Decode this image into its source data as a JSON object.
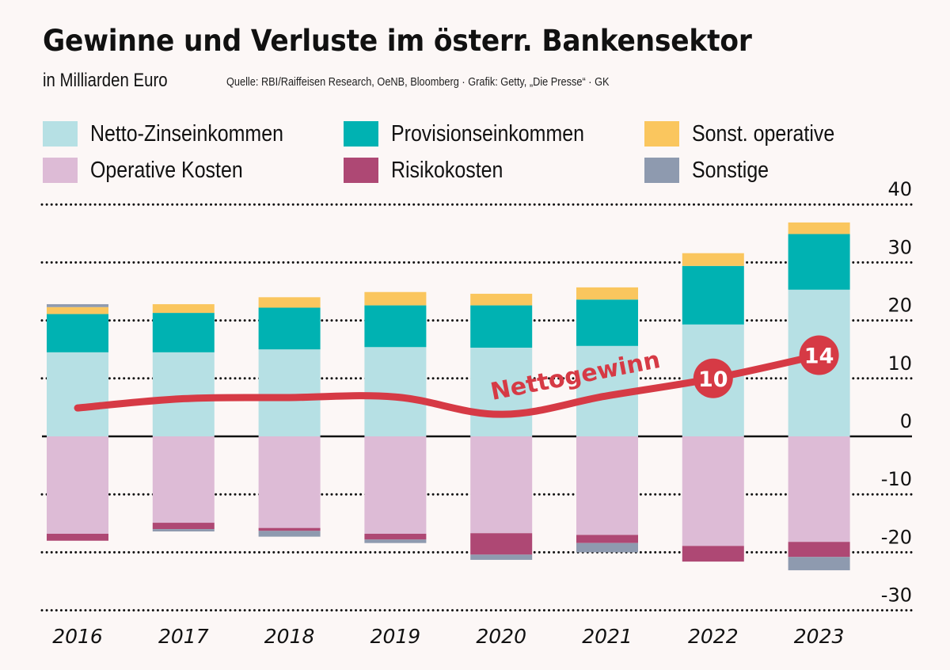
{
  "header": {
    "title": "Gewinne und Verluste im österr. Bankensektor",
    "subtitle": "in Milliarden Euro",
    "source": "Quelle: RBI/Raiffeisen Research, OeNB, Bloomberg · Grafik: Getty, „Die Presse“ · GK"
  },
  "legend": [
    {
      "label": "Netto-Zinseinkommen",
      "color": "#b6e0e4"
    },
    {
      "label": "Provisionseinkommen",
      "color": "#00b2b2"
    },
    {
      "label": "Sonst. operative",
      "color": "#fac65e"
    },
    {
      "label": "Operative Kosten",
      "color": "#ddbbd6"
    },
    {
      "label": "Risikokosten",
      "color": "#ae4874"
    },
    {
      "label": "Sonstige",
      "color": "#8e9aaf"
    }
  ],
  "chart_data": {
    "type": "bar",
    "stacked": true,
    "title": "Gewinne und Verluste im österr. Bankensektor",
    "subtitle": "in Milliarden Euro",
    "xlabel": "",
    "ylabel": "",
    "ylim": [
      -30,
      40
    ],
    "yticks": [
      40,
      30,
      20,
      10,
      0,
      -10,
      -20,
      -30
    ],
    "ytick_labels": [
      "40",
      "30",
      "20",
      "10",
      "0",
      "-10",
      "-20",
      "-30"
    ],
    "y_axis_position": "right",
    "grid": "dotted horizontal",
    "legend_position": "top",
    "categories": [
      "2016",
      "2017",
      "2018",
      "2019",
      "2020",
      "2021",
      "2022",
      "2023"
    ],
    "series": [
      {
        "name": "Netto-Zinseinkommen",
        "color": "#b6e0e4",
        "values": [
          14.5,
          14.5,
          15.0,
          15.4,
          15.3,
          15.6,
          19.3,
          25.3
        ]
      },
      {
        "name": "Provisionseinkommen",
        "color": "#00b2b2",
        "values": [
          6.6,
          6.8,
          7.2,
          7.2,
          7.3,
          8.0,
          10.1,
          9.6
        ]
      },
      {
        "name": "Sonst. operative",
        "color": "#fac65e",
        "values": [
          1.2,
          1.5,
          1.8,
          2.3,
          2.0,
          2.1,
          2.2,
          2.0
        ]
      },
      {
        "name": "Sonstige (positiv)",
        "color": "#8e9aaf",
        "values": [
          0.5,
          0,
          0,
          0,
          0,
          0,
          0,
          0
        ]
      },
      {
        "name": "Operative Kosten",
        "color": "#ddbbd6",
        "values": [
          -16.8,
          -14.9,
          -15.8,
          -16.8,
          -16.7,
          -17.0,
          -18.9,
          -18.2
        ]
      },
      {
        "name": "Risikokosten",
        "color": "#ae4874",
        "values": [
          -1.2,
          -1.1,
          -0.5,
          -1.0,
          -3.7,
          -1.4,
          -2.7,
          -2.6
        ]
      },
      {
        "name": "Sonstige",
        "color": "#8e9aaf",
        "values": [
          0,
          -0.4,
          -1.0,
          -0.6,
          -0.9,
          -1.6,
          0,
          -2.3
        ]
      }
    ],
    "line": {
      "name": "Nettogewinn",
      "label": "Nettogewinn",
      "color": "#d63a45",
      "values": [
        4.9,
        6.5,
        6.7,
        6.8,
        3.8,
        7.0,
        10,
        14
      ],
      "annotations": [
        {
          "category": "2022",
          "value": 10,
          "text": "10"
        },
        {
          "category": "2023",
          "value": 14,
          "text": "14"
        }
      ]
    }
  }
}
